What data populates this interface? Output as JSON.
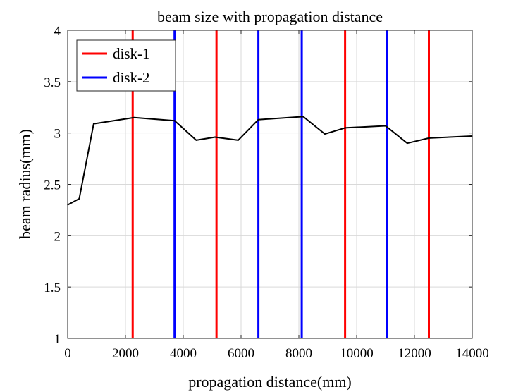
{
  "chart_data": {
    "type": "line",
    "title": "beam size with propagation distance",
    "xlabel": "propagation distance(mm)",
    "ylabel": "beam radius(mm)",
    "xlim": [
      0,
      14000
    ],
    "ylim": [
      1,
      4
    ],
    "xticks": [
      0,
      2000,
      4000,
      6000,
      8000,
      10000,
      12000,
      14000
    ],
    "xtick_labels": [
      "0",
      "2000",
      "4000",
      "6000",
      "8000",
      "10000",
      "12000",
      "14000"
    ],
    "yticks": [
      1,
      1.5,
      2,
      2.5,
      3,
      3.5,
      4
    ],
    "ytick_labels": [
      "1",
      "1.5",
      "2",
      "2.5",
      "3",
      "3.5",
      "4"
    ],
    "grid": true,
    "legend_position": "top-left",
    "colors": {
      "disk1": "#ff0000",
      "disk2": "#0000ff",
      "beam": "#000000",
      "grid": "#d9d9d9"
    },
    "series": [
      {
        "type": "line",
        "color": "#000000",
        "x": [
          0,
          400,
          900,
          2300,
          3700,
          4450,
          5100,
          5900,
          6600,
          8150,
          8900,
          9600,
          11000,
          11750,
          12500,
          14000
        ],
        "y": [
          2.3,
          2.36,
          3.09,
          3.15,
          3.12,
          2.93,
          2.96,
          2.93,
          3.13,
          3.16,
          2.99,
          3.05,
          3.07,
          2.9,
          2.95,
          2.97
        ]
      },
      {
        "name": "disk-1",
        "type": "vlines",
        "color": "#ff0000",
        "x": [
          2250,
          5150,
          9600,
          12500
        ]
      },
      {
        "name": "disk-2",
        "type": "vlines",
        "color": "#0000ff",
        "x": [
          3700,
          6600,
          8100,
          11050
        ]
      }
    ]
  }
}
